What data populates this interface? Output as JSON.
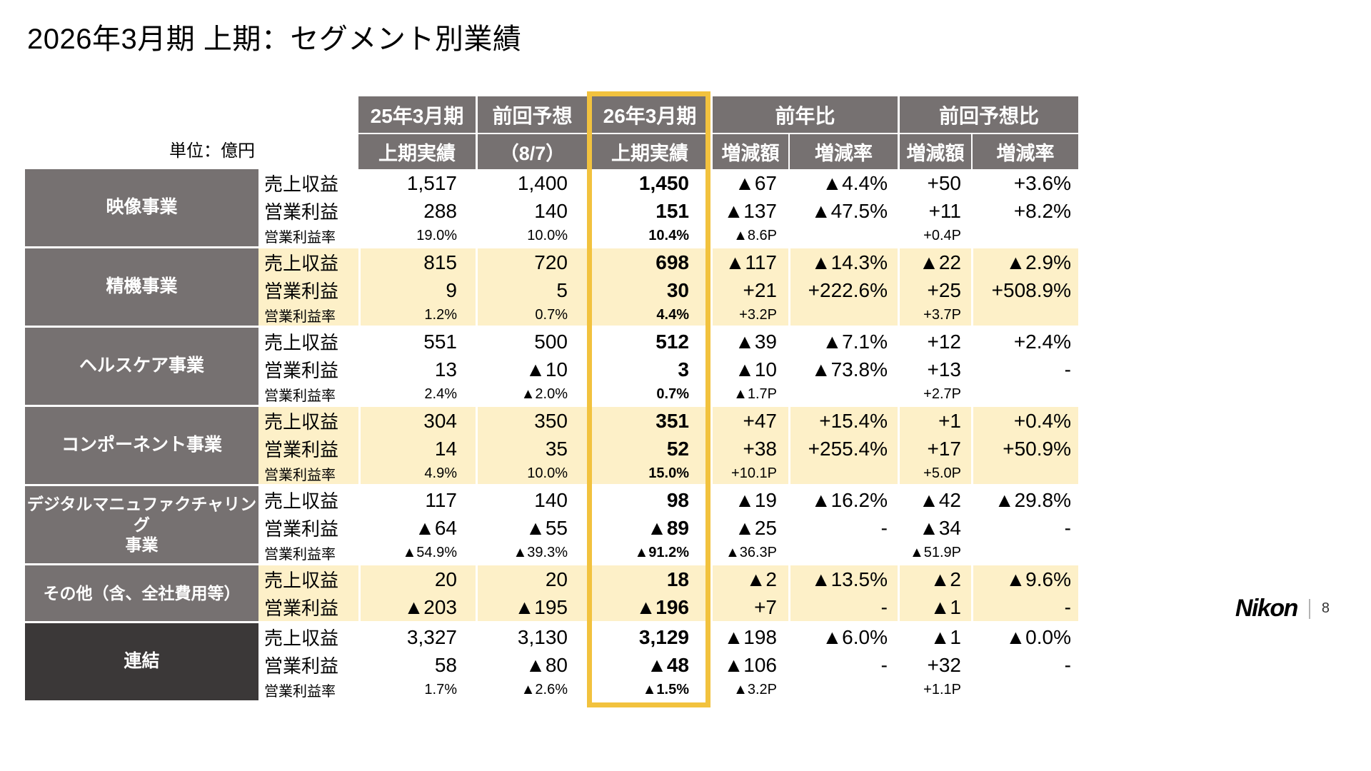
{
  "title": "2026年3月期 上期：セグメント別業績",
  "unit_label": "単位：億円",
  "colors": {
    "header_gray": "#767171",
    "dark": "#3B3838",
    "cream": "#FDF0C8",
    "accent_gold": "#F2C23E"
  },
  "header": {
    "row1": [
      {
        "label": "25年3月期",
        "span": 1
      },
      {
        "label": "前回予想",
        "span": 1
      },
      {
        "label": "26年3月期",
        "span": 1,
        "highlight": true
      },
      {
        "label": "前年比",
        "span": 2
      },
      {
        "label": "前回予想比",
        "span": 2
      }
    ],
    "row2": [
      "上期実績",
      "（8/7）",
      "上期実績",
      "増減額",
      "増減率",
      "増減額",
      "増減率"
    ]
  },
  "segments": [
    {
      "name": "映像事業",
      "name_lines": [
        "映像事業"
      ],
      "tone": "white",
      "rows": [
        {
          "label": "売上収益",
          "type": "value",
          "values": [
            "1,517",
            "1,400",
            "1,450",
            "▲67",
            "▲4.4%",
            "+50",
            "+3.6%"
          ]
        },
        {
          "label": "営業利益",
          "type": "value",
          "values": [
            "288",
            "140",
            "151",
            "▲137",
            "▲47.5%",
            "+11",
            "+8.2%"
          ]
        },
        {
          "label": "営業利益率",
          "type": "rate",
          "values": [
            "19.0%",
            "10.0%",
            "10.4%",
            "▲8.6P",
            "",
            "+0.4P",
            ""
          ]
        }
      ]
    },
    {
      "name": "精機事業",
      "name_lines": [
        "精機事業"
      ],
      "tone": "cream",
      "rows": [
        {
          "label": "売上収益",
          "type": "value",
          "values": [
            "815",
            "720",
            "698",
            "▲117",
            "▲14.3%",
            "▲22",
            "▲2.9%"
          ]
        },
        {
          "label": "営業利益",
          "type": "value",
          "values": [
            "9",
            "5",
            "30",
            "+21",
            "+222.6%",
            "+25",
            "+508.9%"
          ]
        },
        {
          "label": "営業利益率",
          "type": "rate",
          "values": [
            "1.2%",
            "0.7%",
            "4.4%",
            "+3.2P",
            "",
            "+3.7P",
            ""
          ]
        }
      ]
    },
    {
      "name": "ヘルスケア事業",
      "name_lines": [
        "ヘルスケア事業"
      ],
      "tone": "white",
      "rows": [
        {
          "label": "売上収益",
          "type": "value",
          "values": [
            "551",
            "500",
            "512",
            "▲39",
            "▲7.1%",
            "+12",
            "+2.4%"
          ]
        },
        {
          "label": "営業利益",
          "type": "value",
          "values": [
            "13",
            "▲10",
            "3",
            "▲10",
            "▲73.8%",
            "+13",
            "-"
          ]
        },
        {
          "label": "営業利益率",
          "type": "rate",
          "values": [
            "2.4%",
            "▲2.0%",
            "0.7%",
            "▲1.7P",
            "",
            "+2.7P",
            ""
          ]
        }
      ]
    },
    {
      "name": "コンポーネント事業",
      "name_lines": [
        "コンポーネント事業"
      ],
      "tone": "cream",
      "rows": [
        {
          "label": "売上収益",
          "type": "value",
          "values": [
            "304",
            "350",
            "351",
            "+47",
            "+15.4%",
            "+1",
            "+0.4%"
          ]
        },
        {
          "label": "営業利益",
          "type": "value",
          "values": [
            "14",
            "35",
            "52",
            "+38",
            "+255.4%",
            "+17",
            "+50.9%"
          ]
        },
        {
          "label": "営業利益率",
          "type": "rate",
          "values": [
            "4.9%",
            "10.0%",
            "15.0%",
            "+10.1P",
            "",
            "+5.0P",
            ""
          ]
        }
      ]
    },
    {
      "name": "デジタルマニュファクチャリング事業",
      "name_lines": [
        "デジタルマニュファクチャリング",
        "事業"
      ],
      "tone": "white",
      "rows": [
        {
          "label": "売上収益",
          "type": "value",
          "values": [
            "117",
            "140",
            "98",
            "▲19",
            "▲16.2%",
            "▲42",
            "▲29.8%"
          ]
        },
        {
          "label": "営業利益",
          "type": "value",
          "values": [
            "▲64",
            "▲55",
            "▲89",
            "▲25",
            "-",
            "▲34",
            "-"
          ]
        },
        {
          "label": "営業利益率",
          "type": "rate",
          "values": [
            "▲54.9%",
            "▲39.3%",
            "▲91.2%",
            "▲36.3P",
            "",
            "▲51.9P",
            ""
          ]
        }
      ]
    },
    {
      "name": "その他（含、全社費用等）",
      "name_lines": [
        "その他（含、全社費用等）"
      ],
      "tone": "cream",
      "rows": [
        {
          "label": "売上収益",
          "type": "value",
          "values": [
            "20",
            "20",
            "18",
            "▲2",
            "▲13.5%",
            "▲2",
            "▲9.6%"
          ]
        },
        {
          "label": "営業利益",
          "type": "value",
          "values": [
            "▲203",
            "▲195",
            "▲196",
            "+7",
            "-",
            "▲1",
            "-"
          ]
        }
      ]
    },
    {
      "name": "連結",
      "name_lines": [
        "連結"
      ],
      "tone": "dark",
      "rows": [
        {
          "label": "売上収益",
          "type": "value",
          "values": [
            "3,327",
            "3,130",
            "3,129",
            "▲198",
            "▲6.0%",
            "▲1",
            "▲0.0%"
          ]
        },
        {
          "label": "営業利益",
          "type": "value",
          "values": [
            "58",
            "▲80",
            "▲48",
            "▲106",
            "-",
            "+32",
            "-"
          ]
        },
        {
          "label": "営業利益率",
          "type": "rate",
          "values": [
            "1.7%",
            "▲2.6%",
            "▲1.5%",
            "▲3.2P",
            "",
            "+1.1P",
            ""
          ]
        }
      ]
    }
  ],
  "footer": {
    "logo": "Nikon",
    "page": "8"
  }
}
